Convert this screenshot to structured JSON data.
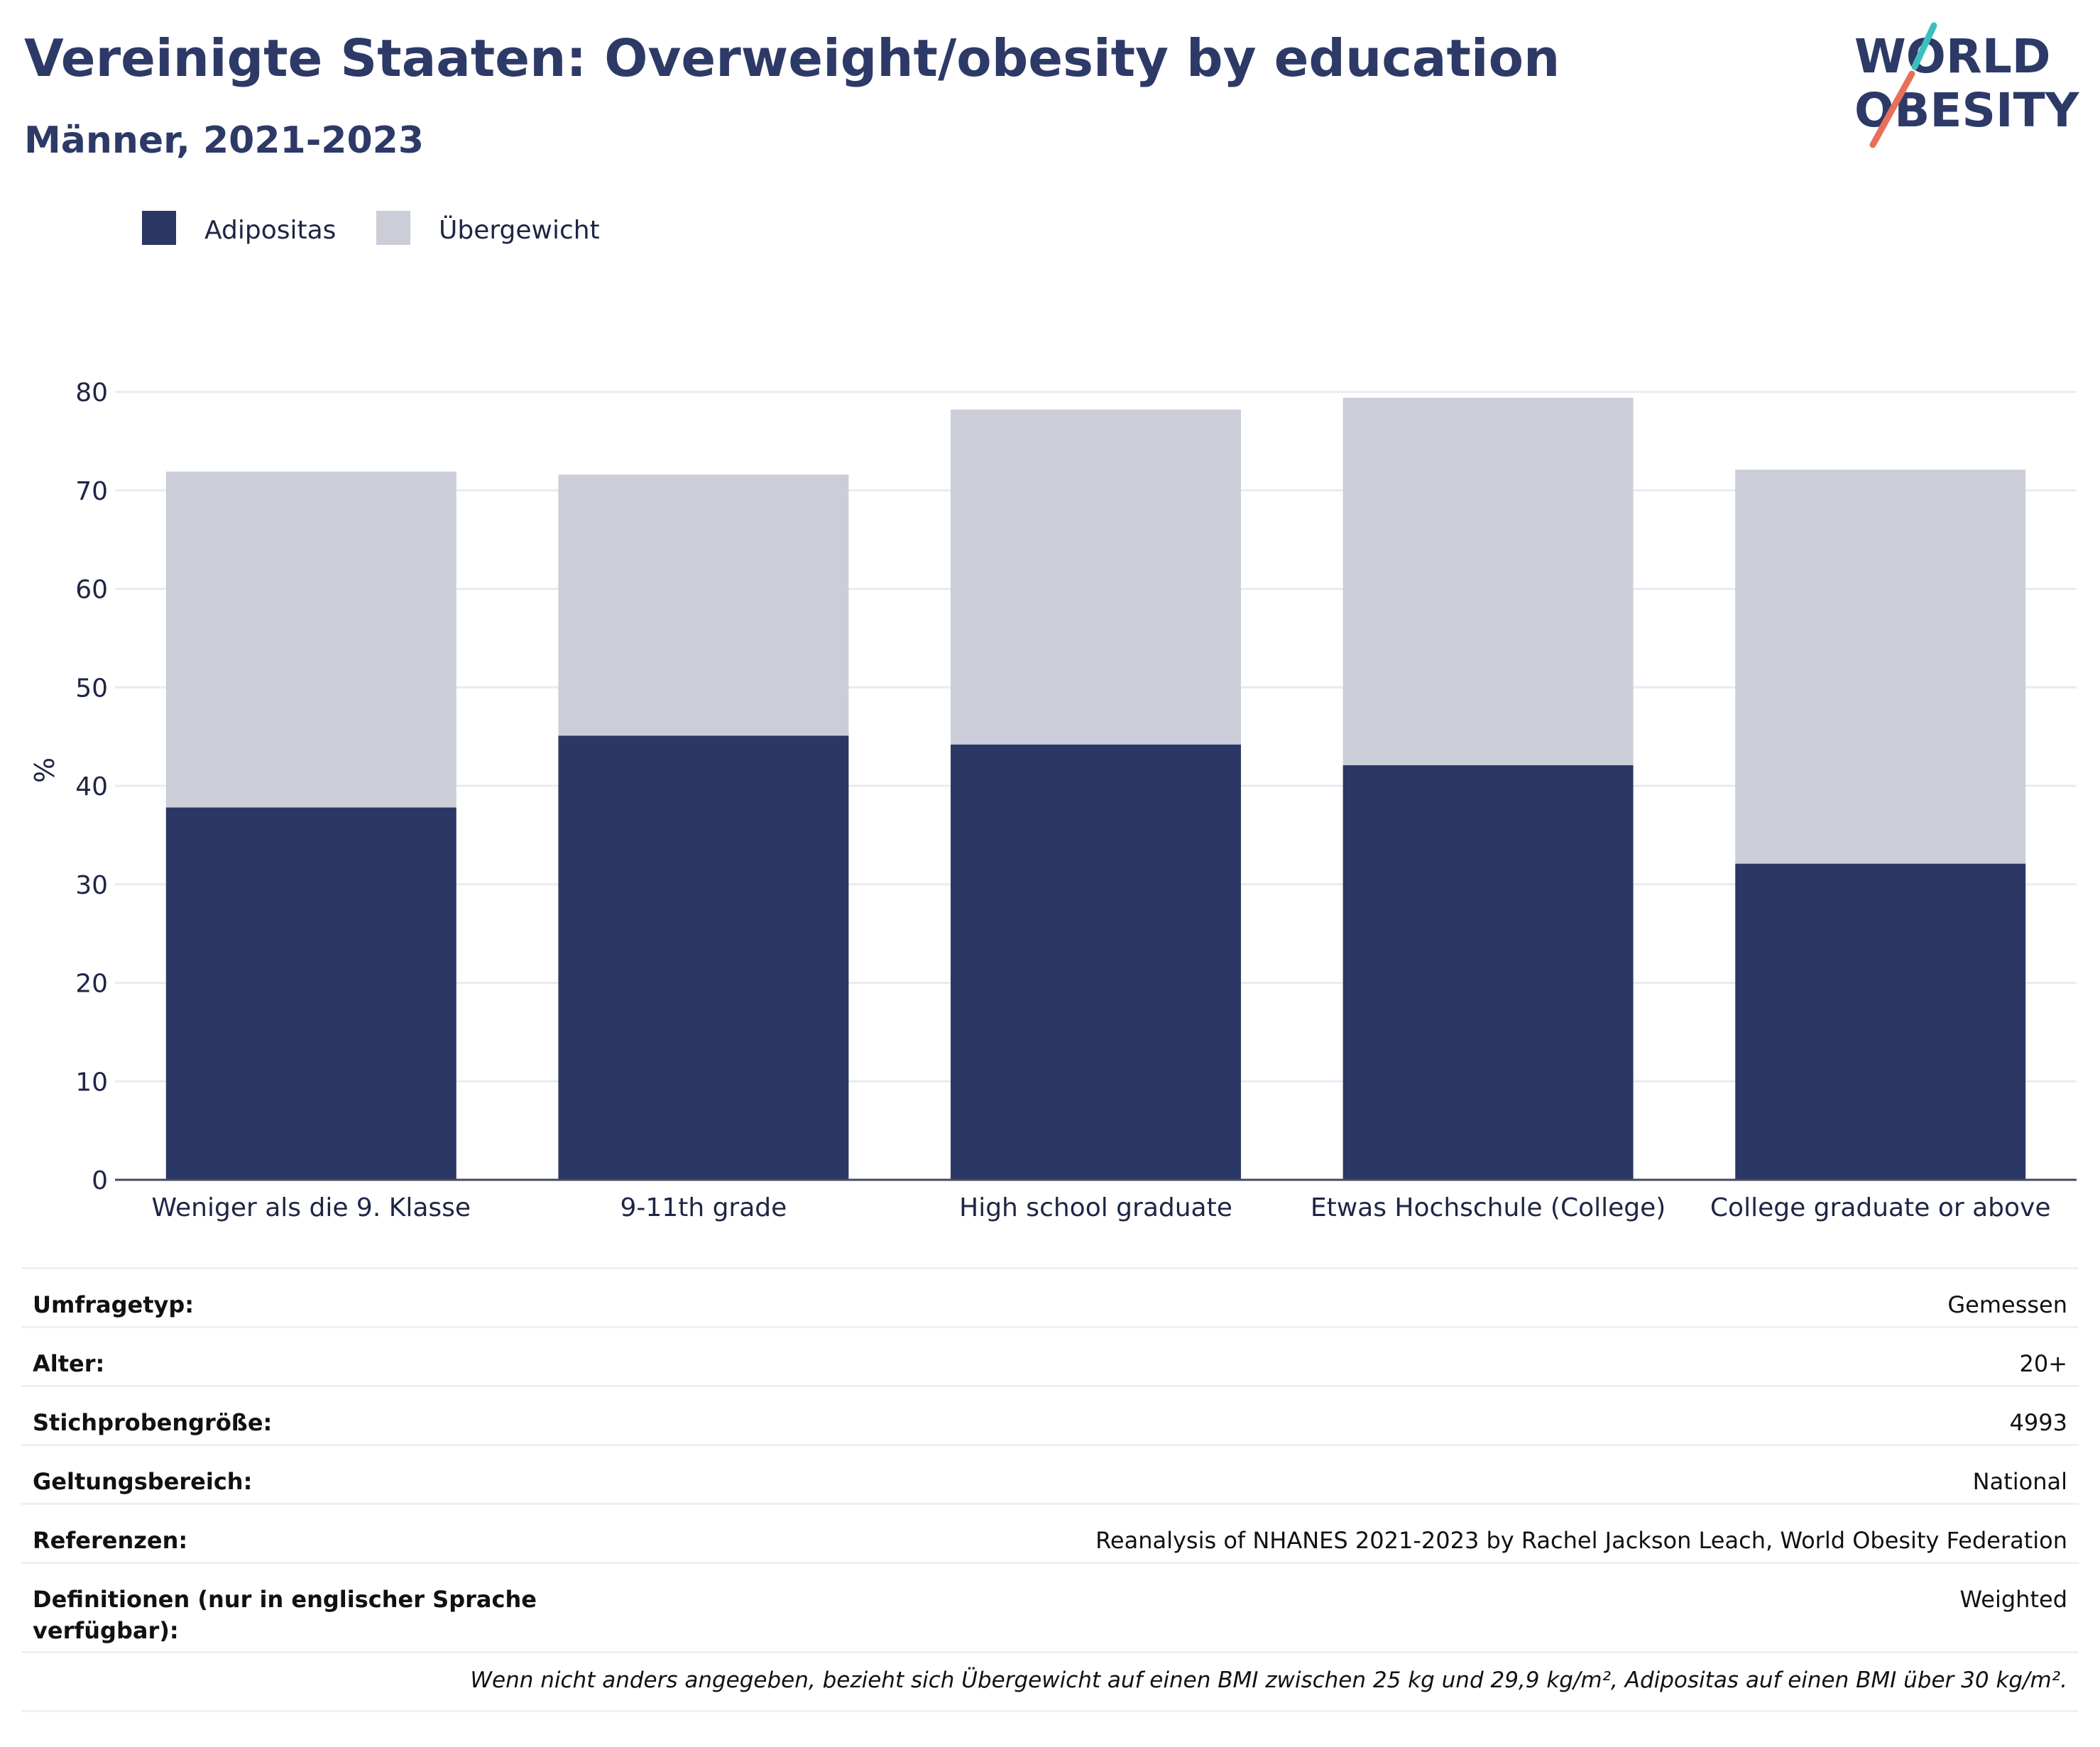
{
  "header": {
    "title": "Vereinigte Staaten: Overweight/obesity by education",
    "subtitle": "Männer, 2021-2023"
  },
  "logo": {
    "line1": "WORLD",
    "line2": "OBESITY"
  },
  "colors": {
    "obesity": "#2b3764",
    "overweight": "#cbcdd8",
    "brand_text": "#2d3a67",
    "logo_teal": "#3bbfbf",
    "logo_coral": "#e8705a"
  },
  "chart_data": {
    "type": "bar",
    "stacked": true,
    "categories": [
      "Weniger als die 9. Klasse",
      "9-11th grade",
      "High school graduate",
      "Etwas Hochschule (College)",
      "College graduate or above"
    ],
    "series": [
      {
        "name": "Adipositas",
        "values": [
          37.8,
          45.1,
          44.2,
          42.1,
          32.1
        ]
      },
      {
        "name": "Übergewicht",
        "values": [
          34.1,
          26.5,
          34.0,
          37.3,
          40.0
        ]
      }
    ],
    "ylabel": "%",
    "ylim": [
      0,
      80
    ],
    "yticks": [
      0,
      10,
      20,
      30,
      40,
      50,
      60,
      70,
      80
    ],
    "grid": true,
    "legend": "top-left"
  },
  "meta": {
    "rows": [
      {
        "key": "Umfragetyp:",
        "value": "Gemessen"
      },
      {
        "key": "Alter:",
        "value": "20+"
      },
      {
        "key": "Stichprobengröße:",
        "value": "4993"
      },
      {
        "key": "Geltungsbereich:",
        "value": "National"
      },
      {
        "key": "Referenzen:",
        "value": "Reanalysis of NHANES 2021-2023 by Rachel Jackson Leach, World Obesity Federation"
      },
      {
        "key": "Definitionen (nur in englischer Sprache verfügbar):",
        "value": "Weighted"
      }
    ],
    "note": "Wenn nicht anders angegeben, bezieht sich Übergewicht auf einen BMI zwischen 25 kg und 29,9 kg/m², Adipositas auf einen BMI über 30 kg/m²."
  }
}
